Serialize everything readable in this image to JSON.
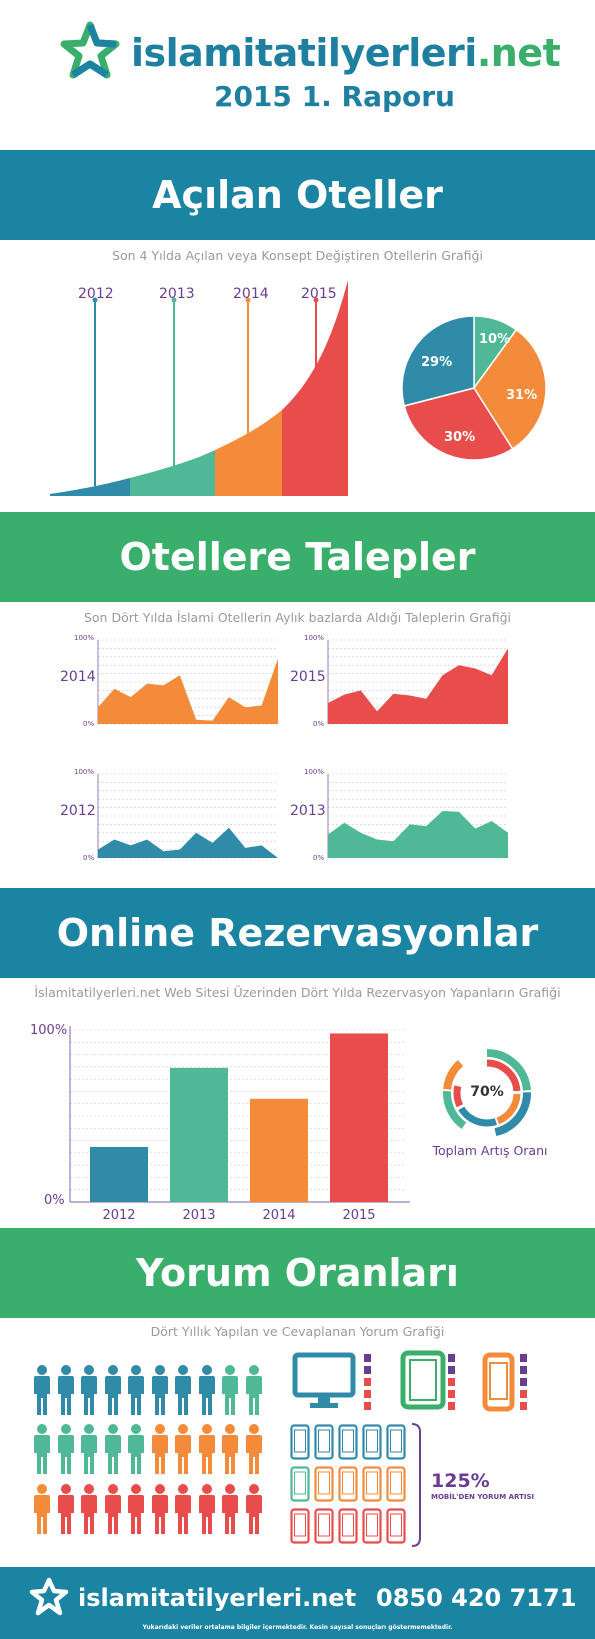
{
  "header": {
    "brand_part1": "islami",
    "brand_part2": "tatilyerleri",
    "brand_part3": ".net",
    "subtitle": "2015 1. Raporu"
  },
  "colors": {
    "blue": "#1c84a3",
    "green": "#3aae6b",
    "teal": "#4fb896",
    "orange": "#f38b3a",
    "red": "#e84d4c",
    "purple": "#6b3d92",
    "dark_blue": "#2f8ba8"
  },
  "section1": {
    "title": "Açılan Oteller",
    "caption": "Son 4 Yılda Açılan veya Konsept Değiştiren Otellerin Grafiği",
    "years": [
      "2012",
      "2013",
      "2014",
      "2015"
    ],
    "pie": {
      "slices": [
        {
          "label": "10%",
          "value": 10,
          "color": "#4fb896"
        },
        {
          "label": "31%",
          "value": 31,
          "color": "#f38b3a"
        },
        {
          "label": "30%",
          "value": 30,
          "color": "#e84d4c"
        },
        {
          "label": "29%",
          "value": 29,
          "color": "#2f8ba8"
        }
      ]
    }
  },
  "section2": {
    "title": "Otellere Talepler",
    "caption": "Son Dört Yılda İslami Otellerin Aylık bazlarda Aldığı Taleplerin Grafiği",
    "axis_top": "100%",
    "axis_bottom": "0%",
    "charts": [
      {
        "year": "2014",
        "color": "#f38b3a",
        "values": [
          20,
          42,
          32,
          48,
          46,
          58,
          5,
          4,
          32,
          20,
          22,
          78
        ]
      },
      {
        "year": "2015",
        "color": "#e84d4c",
        "values": [
          25,
          35,
          40,
          15,
          36,
          34,
          30,
          58,
          70,
          66,
          58,
          90
        ]
      },
      {
        "year": "2012",
        "color": "#2f8ba8",
        "values": [
          10,
          22,
          15,
          22,
          8,
          10,
          30,
          18,
          36,
          12,
          15,
          0
        ]
      },
      {
        "year": "2013",
        "color": "#4fb896",
        "values": [
          28,
          42,
          30,
          22,
          20,
          40,
          38,
          56,
          55,
          35,
          44,
          30
        ]
      }
    ]
  },
  "section3": {
    "title": "Online Rezervasyonlar",
    "caption": "İslamitatilyerleri.net Web Sitesi Üzerinden Dört Yılda Rezervasyon Yapanların Grafiği",
    "chart_data": {
      "type": "bar",
      "categories": [
        "2012",
        "2013",
        "2014",
        "2015"
      ],
      "values": [
        32,
        78,
        60,
        98
      ],
      "ylim": [
        0,
        100
      ],
      "y_top_label": "100%",
      "y_bottom_label": "0%",
      "colors": [
        "#2f8ba8",
        "#4fb896",
        "#f38b3a",
        "#e84d4c"
      ]
    },
    "donut_value": "70%",
    "donut_caption": "Toplam Artış Oranı"
  },
  "section4": {
    "title": "Yorum Oranları",
    "caption": "Dört Yıllık Yapılan ve Cevaplanan Yorum Grafiği",
    "growth": "125%",
    "growth_caption": "MOBİL'DEN YORUM ARTISI"
  },
  "footer": {
    "brand": "islamitatilyerleri.net",
    "phone": "0850 420 7171",
    "disclaimer": "Yukarıdaki veriler ortalama bilgiler içermektedir. Kesin sayısal sonuçları göstermemektedir."
  }
}
